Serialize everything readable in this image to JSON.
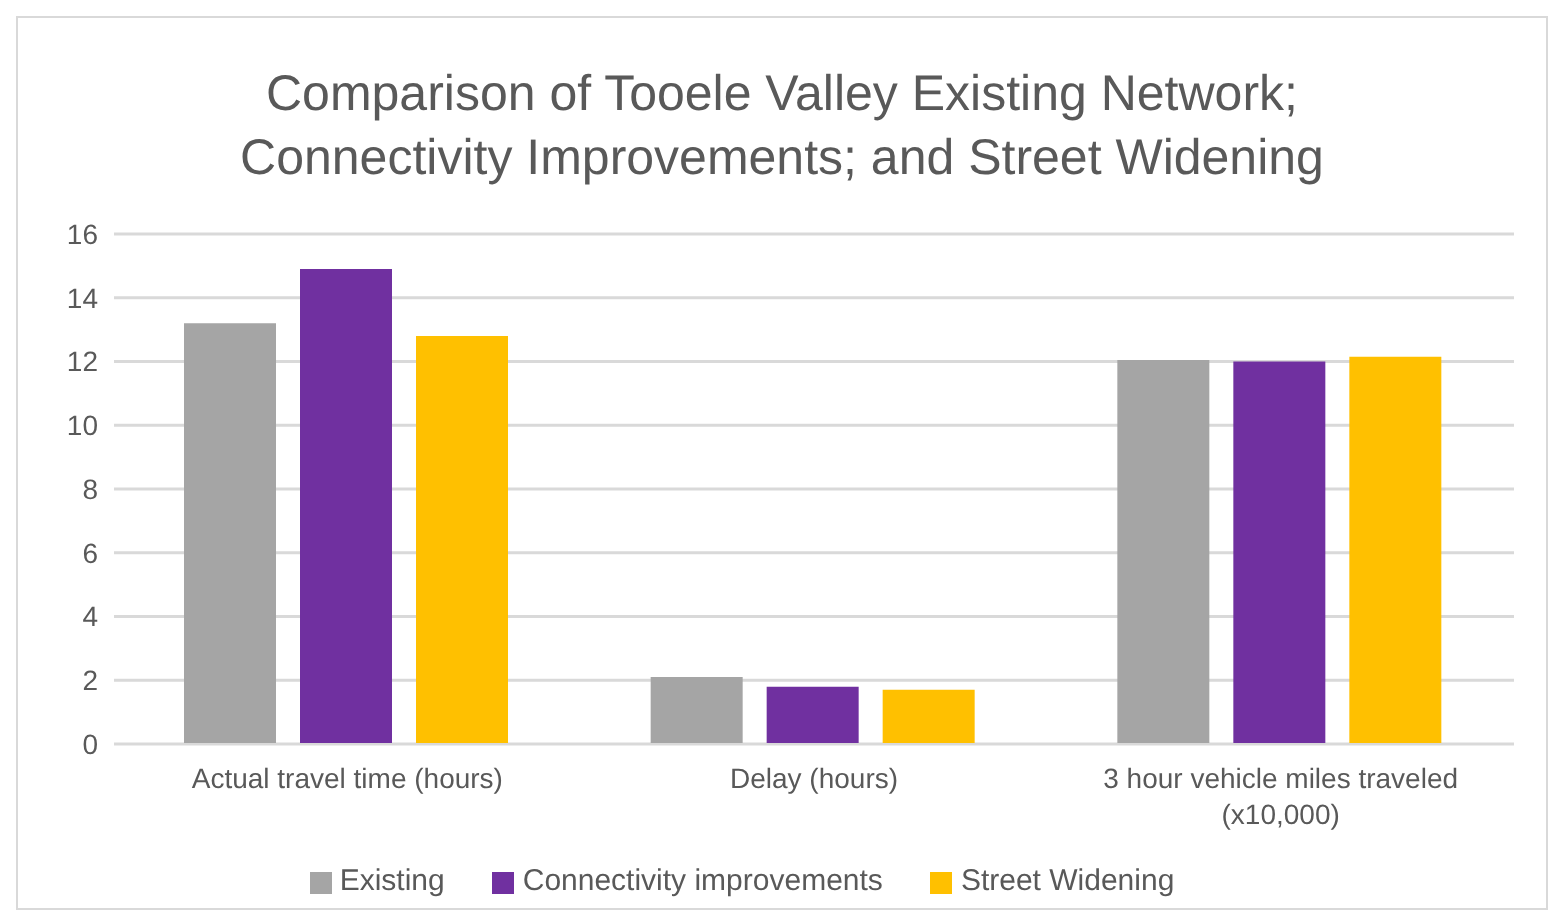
{
  "chart_data": {
    "type": "bar",
    "title": "Comparison of Tooele Valley Existing Network; Connectivity Improvements; and Street Widening",
    "categories": [
      "Actual travel time (hours)",
      "Delay (hours)",
      "3 hour vehicle miles traveled (x10,000)"
    ],
    "series": [
      {
        "name": "Existing",
        "color": "#a5a5a5",
        "values": [
          13.2,
          2.1,
          12.05
        ]
      },
      {
        "name": "Connectivity improvements",
        "color": "#7030a0",
        "values": [
          14.9,
          1.8,
          12.0
        ]
      },
      {
        "name": "Street Widening",
        "color": "#ffc000",
        "values": [
          12.8,
          1.7,
          12.15
        ]
      }
    ],
    "ylim": [
      0,
      16
    ],
    "yticks": [
      0,
      2,
      4,
      6,
      8,
      10,
      12,
      14,
      16
    ],
    "grid": "y",
    "legend": "bottom"
  }
}
